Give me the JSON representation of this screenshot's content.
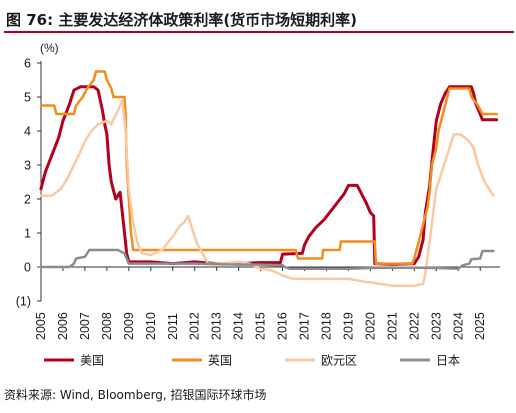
{
  "figure": {
    "title": "图 76: 主要发达经济体政策利率(货币市场短期利率)",
    "source": "资料来源: Wind, Bloomberg, 招银国际环球市场"
  },
  "colors": {
    "title_rule": "#b3001b",
    "axis": "#333333"
  },
  "chart_data": {
    "type": "line",
    "title": "",
    "xlabel": "",
    "ylabel": "(%)",
    "xlim": [
      2005,
      2025.9
    ],
    "ylim": [
      -1,
      6
    ],
    "grid": false,
    "legend_position": "bottom",
    "y_ticks": [
      {
        "value": 6,
        "label": "6",
        "color": "#1a1a1a"
      },
      {
        "value": 5,
        "label": "5",
        "color": "#1a1a1a"
      },
      {
        "value": 4,
        "label": "4",
        "color": "#1a1a1a"
      },
      {
        "value": 3,
        "label": "3",
        "color": "#1a1a1a"
      },
      {
        "value": 2,
        "label": "2",
        "color": "#1a1a1a"
      },
      {
        "value": 1,
        "label": "1",
        "color": "#1a1a1a"
      },
      {
        "value": 0,
        "label": "0",
        "color": "#1a1a1a"
      },
      {
        "value": -1,
        "label": "(1)",
        "color": "#c00000"
      }
    ],
    "x_ticks": [
      "2005",
      "2006",
      "2007",
      "2008",
      "2009",
      "2010",
      "2011",
      "2012",
      "2013",
      "2014",
      "2015",
      "2016",
      "2017",
      "2018",
      "2019",
      "2020",
      "2021",
      "2022",
      "2023",
      "2024",
      "2025"
    ],
    "series": [
      {
        "name": "美国",
        "color": "#b3001b",
        "width": 3,
        "points": [
          [
            2005.0,
            2.3
          ],
          [
            2005.2,
            2.8
          ],
          [
            2005.5,
            3.3
          ],
          [
            2005.8,
            3.8
          ],
          [
            2006.0,
            4.3
          ],
          [
            2006.3,
            4.8
          ],
          [
            2006.5,
            5.2
          ],
          [
            2006.8,
            5.3
          ],
          [
            2007.0,
            5.3
          ],
          [
            2007.2,
            5.3
          ],
          [
            2007.4,
            5.3
          ],
          [
            2007.6,
            5.2
          ],
          [
            2007.7,
            4.9
          ],
          [
            2007.8,
            4.6
          ],
          [
            2007.9,
            4.2
          ],
          [
            2008.0,
            3.9
          ],
          [
            2008.1,
            3.0
          ],
          [
            2008.2,
            2.5
          ],
          [
            2008.4,
            2.0
          ],
          [
            2008.6,
            2.2
          ],
          [
            2008.7,
            1.6
          ],
          [
            2008.8,
            1.0
          ],
          [
            2008.9,
            0.4
          ],
          [
            2009.0,
            0.15
          ],
          [
            2009.5,
            0.15
          ],
          [
            2010.0,
            0.15
          ],
          [
            2011.0,
            0.1
          ],
          [
            2012.0,
            0.15
          ],
          [
            2013.0,
            0.1
          ],
          [
            2014.0,
            0.1
          ],
          [
            2015.0,
            0.13
          ],
          [
            2015.9,
            0.13
          ],
          [
            2016.0,
            0.38
          ],
          [
            2016.9,
            0.4
          ],
          [
            2017.0,
            0.65
          ],
          [
            2017.2,
            0.9
          ],
          [
            2017.5,
            1.15
          ],
          [
            2017.9,
            1.4
          ],
          [
            2018.2,
            1.65
          ],
          [
            2018.5,
            1.9
          ],
          [
            2018.8,
            2.15
          ],
          [
            2019.0,
            2.4
          ],
          [
            2019.4,
            2.4
          ],
          [
            2019.6,
            2.15
          ],
          [
            2019.8,
            1.9
          ],
          [
            2020.0,
            1.6
          ],
          [
            2020.15,
            1.5
          ],
          [
            2020.2,
            0.1
          ],
          [
            2021.0,
            0.08
          ],
          [
            2022.0,
            0.1
          ],
          [
            2022.2,
            0.3
          ],
          [
            2022.4,
            0.8
          ],
          [
            2022.5,
            1.6
          ],
          [
            2022.7,
            2.4
          ],
          [
            2022.8,
            3.1
          ],
          [
            2023.0,
            4.3
          ],
          [
            2023.2,
            4.8
          ],
          [
            2023.4,
            5.1
          ],
          [
            2023.6,
            5.3
          ],
          [
            2024.0,
            5.3
          ],
          [
            2024.6,
            5.3
          ],
          [
            2024.7,
            5.1
          ],
          [
            2024.8,
            4.8
          ],
          [
            2025.0,
            4.5
          ],
          [
            2025.1,
            4.33
          ],
          [
            2025.75,
            4.33
          ]
        ]
      },
      {
        "name": "英国",
        "color": "#f28c1f",
        "width": 2.5,
        "points": [
          [
            2005.0,
            4.75
          ],
          [
            2005.6,
            4.75
          ],
          [
            2005.7,
            4.5
          ],
          [
            2006.5,
            4.5
          ],
          [
            2006.6,
            4.75
          ],
          [
            2006.9,
            5.0
          ],
          [
            2007.1,
            5.25
          ],
          [
            2007.4,
            5.5
          ],
          [
            2007.5,
            5.75
          ],
          [
            2007.9,
            5.75
          ],
          [
            2008.0,
            5.5
          ],
          [
            2008.2,
            5.25
          ],
          [
            2008.3,
            5.0
          ],
          [
            2008.8,
            5.0
          ],
          [
            2008.85,
            4.5
          ],
          [
            2008.9,
            3.0
          ],
          [
            2009.0,
            2.0
          ],
          [
            2009.1,
            1.0
          ],
          [
            2009.2,
            0.5
          ],
          [
            2010.0,
            0.5
          ],
          [
            2016.0,
            0.5
          ],
          [
            2016.6,
            0.5
          ],
          [
            2016.7,
            0.25
          ],
          [
            2017.8,
            0.25
          ],
          [
            2017.85,
            0.5
          ],
          [
            2018.6,
            0.5
          ],
          [
            2018.65,
            0.75
          ],
          [
            2020.2,
            0.75
          ],
          [
            2020.25,
            0.1
          ],
          [
            2021.9,
            0.1
          ],
          [
            2022.0,
            0.25
          ],
          [
            2022.1,
            0.5
          ],
          [
            2022.2,
            0.75
          ],
          [
            2022.4,
            1.25
          ],
          [
            2022.6,
            1.75
          ],
          [
            2022.7,
            2.25
          ],
          [
            2022.8,
            3.0
          ],
          [
            2023.0,
            3.5
          ],
          [
            2023.1,
            4.0
          ],
          [
            2023.3,
            4.5
          ],
          [
            2023.5,
            5.0
          ],
          [
            2023.6,
            5.25
          ],
          [
            2024.5,
            5.25
          ],
          [
            2024.6,
            5.0
          ],
          [
            2024.9,
            4.75
          ],
          [
            2025.1,
            4.5
          ],
          [
            2025.75,
            4.5
          ]
        ]
      },
      {
        "name": "欧元区",
        "color": "#f8c9a3",
        "width": 2.5,
        "points": [
          [
            2005.0,
            2.1
          ],
          [
            2005.5,
            2.1
          ],
          [
            2005.9,
            2.3
          ],
          [
            2006.2,
            2.6
          ],
          [
            2006.5,
            3.0
          ],
          [
            2006.8,
            3.4
          ],
          [
            2007.0,
            3.7
          ],
          [
            2007.3,
            4.0
          ],
          [
            2007.6,
            4.2
          ],
          [
            2008.0,
            4.3
          ],
          [
            2008.2,
            4.2
          ],
          [
            2008.5,
            4.6
          ],
          [
            2008.7,
            4.9
          ],
          [
            2008.85,
            4.0
          ],
          [
            2009.0,
            2.3
          ],
          [
            2009.2,
            1.3
          ],
          [
            2009.4,
            0.7
          ],
          [
            2009.6,
            0.4
          ],
          [
            2010.0,
            0.35
          ],
          [
            2010.5,
            0.5
          ],
          [
            2011.0,
            0.9
          ],
          [
            2011.3,
            1.2
          ],
          [
            2011.5,
            1.3
          ],
          [
            2011.7,
            1.5
          ],
          [
            2011.9,
            1.1
          ],
          [
            2012.1,
            0.7
          ],
          [
            2012.4,
            0.35
          ],
          [
            2012.6,
            0.1
          ],
          [
            2013.0,
            0.1
          ],
          [
            2014.0,
            0.15
          ],
          [
            2014.5,
            0.1
          ],
          [
            2014.8,
            0.0
          ],
          [
            2015.0,
            -0.05
          ],
          [
            2015.5,
            -0.1
          ],
          [
            2016.0,
            -0.25
          ],
          [
            2016.5,
            -0.35
          ],
          [
            2017.0,
            -0.35
          ],
          [
            2018.0,
            -0.35
          ],
          [
            2019.0,
            -0.35
          ],
          [
            2019.9,
            -0.45
          ],
          [
            2020.0,
            -0.45
          ],
          [
            2021.0,
            -0.55
          ],
          [
            2022.0,
            -0.55
          ],
          [
            2022.4,
            -0.5
          ],
          [
            2022.5,
            -0.2
          ],
          [
            2022.6,
            0.3
          ],
          [
            2022.75,
            1.0
          ],
          [
            2022.9,
            1.8
          ],
          [
            2023.0,
            2.3
          ],
          [
            2023.2,
            2.7
          ],
          [
            2023.4,
            3.1
          ],
          [
            2023.6,
            3.5
          ],
          [
            2023.8,
            3.9
          ],
          [
            2024.1,
            3.9
          ],
          [
            2024.3,
            3.8
          ],
          [
            2024.5,
            3.7
          ],
          [
            2024.7,
            3.5
          ],
          [
            2024.9,
            3.0
          ],
          [
            2025.2,
            2.5
          ],
          [
            2025.5,
            2.2
          ],
          [
            2025.6,
            2.1
          ]
        ]
      },
      {
        "name": "日本",
        "color": "#8c8c8c",
        "width": 2.5,
        "points": [
          [
            2005.0,
            0.0
          ],
          [
            2006.3,
            0.0
          ],
          [
            2006.5,
            0.1
          ],
          [
            2006.6,
            0.25
          ],
          [
            2007.0,
            0.3
          ],
          [
            2007.2,
            0.5
          ],
          [
            2007.6,
            0.5
          ],
          [
            2008.0,
            0.5
          ],
          [
            2008.5,
            0.5
          ],
          [
            2008.8,
            0.4
          ],
          [
            2009.0,
            0.1
          ],
          [
            2010.0,
            0.1
          ],
          [
            2011.0,
            0.1
          ],
          [
            2012.0,
            0.1
          ],
          [
            2013.0,
            0.08
          ],
          [
            2014.0,
            0.07
          ],
          [
            2015.0,
            0.07
          ],
          [
            2016.0,
            0.05
          ],
          [
            2016.1,
            0.0
          ],
          [
            2016.3,
            -0.05
          ],
          [
            2017.0,
            -0.05
          ],
          [
            2018.0,
            -0.05
          ],
          [
            2019.0,
            -0.05
          ],
          [
            2020.0,
            -0.03
          ],
          [
            2021.0,
            -0.02
          ],
          [
            2022.0,
            -0.02
          ],
          [
            2023.0,
            -0.03
          ],
          [
            2024.0,
            -0.05
          ],
          [
            2024.2,
            0.05
          ],
          [
            2024.5,
            0.1
          ],
          [
            2024.6,
            0.23
          ],
          [
            2025.0,
            0.25
          ],
          [
            2025.1,
            0.47
          ],
          [
            2025.6,
            0.47
          ]
        ]
      }
    ]
  }
}
